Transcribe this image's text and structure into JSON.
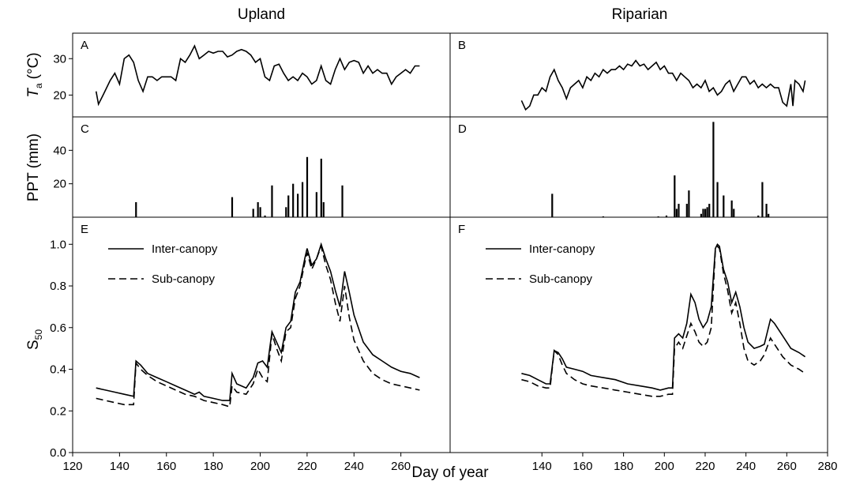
{
  "figure": {
    "column_titles": [
      "Upland",
      "Riparian"
    ],
    "xlabel": "Day of year"
  },
  "chart_data": [
    {
      "type": "line",
      "panel": "A",
      "ylabel": {
        "symbol": "T",
        "subscript": "a",
        "unit": "(°C)"
      },
      "xlim": [
        120,
        281
      ],
      "ylim": [
        14,
        37
      ],
      "yticks": [
        20,
        30
      ],
      "color": "#000000",
      "x": [
        130,
        131,
        133,
        136,
        138,
        140,
        142,
        144,
        146,
        148,
        150,
        152,
        154,
        156,
        158,
        160,
        162,
        164,
        166,
        168,
        170,
        172,
        174,
        176,
        178,
        180,
        182,
        184,
        186,
        188,
        190,
        192,
        194,
        196,
        198,
        200,
        202,
        204,
        206,
        208,
        210,
        212,
        214,
        216,
        218,
        220,
        222,
        224,
        226,
        228,
        230,
        232,
        234,
        236,
        238,
        240,
        242,
        244,
        246,
        248,
        250,
        252,
        254,
        256,
        258,
        260,
        262,
        264,
        266,
        268
      ],
      "values": [
        21,
        17.5,
        20,
        24,
        26,
        23,
        30,
        31,
        29,
        24,
        21,
        25,
        25,
        24,
        25,
        25,
        25,
        24,
        30,
        29,
        31,
        33.5,
        30,
        31,
        32,
        31.5,
        32,
        32,
        30.5,
        31,
        32,
        32.5,
        32,
        31,
        29,
        30,
        25,
        24,
        28,
        28.5,
        26,
        24,
        25,
        24,
        26,
        25,
        23,
        24,
        28,
        24,
        23,
        27,
        30,
        27,
        29,
        29.5,
        29,
        26,
        28,
        26,
        27,
        26,
        26,
        23,
        25,
        26,
        27,
        26,
        28,
        28
      ]
    },
    {
      "type": "line",
      "panel": "B",
      "xlim": [
        95,
        280
      ],
      "ylim": [
        14,
        37
      ],
      "color": "#000000",
      "x": [
        130,
        132,
        134,
        136,
        138,
        140,
        142,
        144,
        146,
        148,
        150,
        152,
        154,
        156,
        158,
        160,
        162,
        164,
        166,
        168,
        170,
        172,
        174,
        176,
        178,
        180,
        182,
        184,
        186,
        188,
        190,
        192,
        194,
        196,
        198,
        200,
        202,
        204,
        206,
        208,
        210,
        212,
        214,
        216,
        218,
        220,
        222,
        224,
        226,
        228,
        230,
        232,
        234,
        236,
        238,
        240,
        242,
        244,
        246,
        248,
        250,
        252,
        254,
        256,
        258,
        260,
        262,
        263,
        264,
        266,
        268,
        269
      ],
      "values": [
        18.5,
        16,
        17,
        20,
        20,
        22,
        21,
        25,
        27,
        24,
        22,
        19,
        22,
        23,
        24,
        22,
        25,
        24,
        26,
        25,
        27,
        26,
        27,
        27,
        28,
        27,
        28.5,
        28,
        29.5,
        28,
        28.5,
        27,
        28,
        29,
        27,
        28,
        26,
        26,
        24,
        26,
        25,
        24,
        22,
        23,
        22,
        24,
        21,
        22,
        20,
        21,
        23,
        24,
        21,
        23,
        25,
        25,
        23,
        24,
        22,
        23,
        22,
        23,
        22,
        22,
        18,
        17,
        23,
        17,
        24,
        23,
        21,
        24
      ]
    },
    {
      "type": "bar",
      "panel": "C",
      "ylabel": {
        "text": "PPT (mm)"
      },
      "xlim": [
        120,
        281
      ],
      "ylim": [
        0,
        60
      ],
      "yticks": [
        20,
        40
      ],
      "color": "#000000",
      "x": [
        147,
        188,
        197,
        199,
        200,
        202,
        205,
        211,
        212,
        214,
        216,
        218,
        220,
        224,
        226,
        227,
        235
      ],
      "values": [
        9,
        12,
        5,
        9,
        6,
        1,
        19,
        6,
        13,
        20,
        14,
        21,
        36,
        15,
        35,
        9,
        19
      ]
    },
    {
      "type": "bar",
      "panel": "D",
      "xlim": [
        95,
        280
      ],
      "ylim": [
        0,
        60
      ],
      "color": "#000000",
      "x": [
        145,
        170,
        197,
        201,
        205,
        206,
        207,
        211,
        212,
        218,
        219,
        220,
        221,
        222,
        224,
        226,
        229,
        233,
        234,
        246,
        248,
        250,
        251
      ],
      "values": [
        14,
        0.5,
        0.5,
        1,
        25,
        5,
        8,
        8,
        16,
        2,
        5,
        5,
        6,
        8,
        57,
        21,
        13,
        10,
        5,
        1,
        21,
        8,
        2
      ]
    },
    {
      "type": "line",
      "panel": "E",
      "ylabel": {
        "symbol": "S",
        "subscript": "50"
      },
      "xlim": [
        120,
        281
      ],
      "ylim": [
        0,
        1.13
      ],
      "xticks": [
        120,
        140,
        160,
        180,
        200,
        220,
        240,
        260
      ],
      "yticks": [
        {
          "value": 0,
          "label": "0.0"
        },
        {
          "value": 0.2,
          "label": "0.2"
        },
        {
          "value": 0.4,
          "label": "0.4"
        },
        {
          "value": 0.6,
          "label": "0.6"
        },
        {
          "value": 0.8,
          "label": "0.8"
        },
        {
          "value": 1,
          "label": "1.0"
        }
      ],
      "legend": "upper left",
      "x": [
        130,
        134,
        138,
        142,
        146,
        147,
        149,
        152,
        156,
        160,
        164,
        168,
        172,
        174,
        176,
        180,
        184,
        187,
        188,
        190,
        194,
        197,
        199,
        201,
        203,
        205,
        207,
        209,
        211,
        213,
        215,
        217,
        219,
        220,
        222,
        224,
        226,
        228,
        230,
        232,
        234,
        236,
        238,
        240,
        244,
        248,
        252,
        256,
        260,
        264,
        268
      ],
      "series": [
        {
          "name": "Inter-canopy",
          "color": "#000000",
          "line_style": "solid",
          "values": [
            0.31,
            0.3,
            0.29,
            0.28,
            0.27,
            0.44,
            0.42,
            0.38,
            0.36,
            0.34,
            0.32,
            0.3,
            0.28,
            0.29,
            0.27,
            0.26,
            0.25,
            0.25,
            0.38,
            0.33,
            0.31,
            0.36,
            0.43,
            0.44,
            0.41,
            0.58,
            0.53,
            0.48,
            0.6,
            0.63,
            0.77,
            0.82,
            0.93,
            0.98,
            0.9,
            0.93,
            1.0,
            0.93,
            0.87,
            0.78,
            0.7,
            0.87,
            0.77,
            0.66,
            0.53,
            0.47,
            0.44,
            0.41,
            0.39,
            0.38,
            0.36
          ]
        },
        {
          "name": "Sub-canopy",
          "color": "#000000",
          "line_style": "dashed",
          "values": [
            0.26,
            0.25,
            0.24,
            0.23,
            0.23,
            0.43,
            0.4,
            0.37,
            0.34,
            0.32,
            0.3,
            0.28,
            0.27,
            0.26,
            0.25,
            0.24,
            0.23,
            0.22,
            0.32,
            0.29,
            0.28,
            0.33,
            0.4,
            0.36,
            0.34,
            0.57,
            0.5,
            0.44,
            0.58,
            0.6,
            0.74,
            0.8,
            0.91,
            0.96,
            0.88,
            0.93,
            0.99,
            0.9,
            0.83,
            0.72,
            0.63,
            0.8,
            0.65,
            0.54,
            0.44,
            0.38,
            0.35,
            0.33,
            0.32,
            0.31,
            0.3
          ]
        }
      ]
    },
    {
      "type": "line",
      "panel": "F",
      "xlim": [
        95,
        280
      ],
      "ylim": [
        0,
        1.13
      ],
      "xticks": [
        140,
        160,
        180,
        200,
        220,
        240,
        260,
        280
      ],
      "legend": "upper left",
      "x": [
        130,
        134,
        138,
        142,
        144,
        146,
        148,
        150,
        152,
        156,
        160,
        164,
        170,
        176,
        182,
        188,
        194,
        198,
        202,
        204,
        205,
        207,
        209,
        211,
        213,
        215,
        217,
        219,
        221,
        223,
        225,
        226,
        227,
        229,
        231,
        233,
        235,
        237,
        239,
        241,
        244,
        247,
        249,
        252,
        254,
        258,
        262,
        266,
        269
      ],
      "series": [
        {
          "name": "Inter-canopy",
          "color": "#000000",
          "line_style": "solid",
          "values": [
            0.38,
            0.37,
            0.35,
            0.33,
            0.33,
            0.49,
            0.48,
            0.45,
            0.41,
            0.4,
            0.39,
            0.37,
            0.36,
            0.35,
            0.33,
            0.32,
            0.31,
            0.3,
            0.31,
            0.31,
            0.55,
            0.57,
            0.55,
            0.62,
            0.76,
            0.72,
            0.64,
            0.6,
            0.63,
            0.7,
            0.98,
            1.0,
            0.99,
            0.88,
            0.82,
            0.72,
            0.77,
            0.7,
            0.6,
            0.53,
            0.5,
            0.51,
            0.52,
            0.64,
            0.62,
            0.56,
            0.5,
            0.48,
            0.46
          ]
        },
        {
          "name": "Sub-canopy",
          "color": "#000000",
          "line_style": "dashed",
          "values": [
            0.35,
            0.34,
            0.32,
            0.31,
            0.31,
            0.49,
            0.47,
            0.42,
            0.38,
            0.35,
            0.33,
            0.32,
            0.31,
            0.3,
            0.29,
            0.28,
            0.27,
            0.27,
            0.28,
            0.28,
            0.5,
            0.53,
            0.5,
            0.56,
            0.62,
            0.58,
            0.53,
            0.51,
            0.53,
            0.6,
            0.97,
            0.99,
            0.98,
            0.86,
            0.78,
            0.67,
            0.72,
            0.62,
            0.5,
            0.44,
            0.42,
            0.44,
            0.47,
            0.55,
            0.52,
            0.46,
            0.42,
            0.4,
            0.38
          ]
        }
      ]
    }
  ]
}
